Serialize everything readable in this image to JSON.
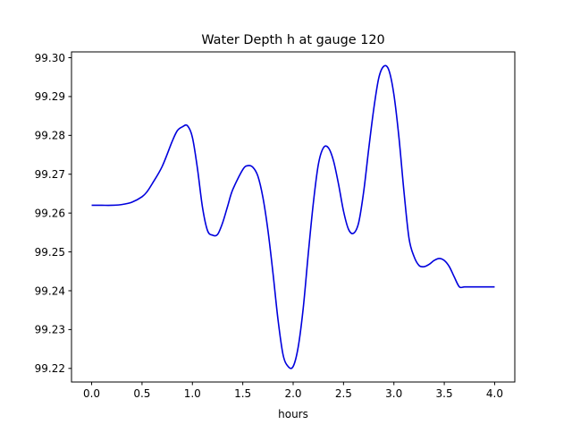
{
  "chart_data": {
    "type": "line",
    "title": "Water Depth h at gauge 120",
    "xlabel": "hours",
    "ylabel": "",
    "xlim": [
      -0.2,
      4.2
    ],
    "ylim": [
      99.2165,
      99.3015
    ],
    "xticks": [
      0.0,
      0.5,
      1.0,
      1.5,
      2.0,
      2.5,
      3.0,
      3.5,
      4.0
    ],
    "xtick_labels": [
      "0.0",
      "0.5",
      "1.0",
      "1.5",
      "2.0",
      "2.5",
      "3.0",
      "3.5",
      "4.0"
    ],
    "yticks": [
      99.22,
      99.23,
      99.24,
      99.25,
      99.26,
      99.27,
      99.28,
      99.29,
      99.3
    ],
    "ytick_labels": [
      "99.22",
      "99.23",
      "99.24",
      "99.25",
      "99.26",
      "99.27",
      "99.28",
      "99.29",
      "99.30"
    ],
    "grid": false,
    "series": [
      {
        "color": "#0000dd",
        "x": [
          0.0,
          0.1,
          0.2,
          0.3,
          0.4,
          0.5,
          0.55,
          0.6,
          0.7,
          0.8,
          0.85,
          0.9,
          0.95,
          1.0,
          1.05,
          1.1,
          1.15,
          1.2,
          1.25,
          1.3,
          1.35,
          1.4,
          1.5,
          1.55,
          1.6,
          1.65,
          1.7,
          1.75,
          1.8,
          1.85,
          1.9,
          1.95,
          2.0,
          2.05,
          2.1,
          2.15,
          2.2,
          2.25,
          2.3,
          2.35,
          2.4,
          2.45,
          2.5,
          2.55,
          2.6,
          2.65,
          2.7,
          2.75,
          2.8,
          2.85,
          2.9,
          2.95,
          3.0,
          3.05,
          3.1,
          3.15,
          3.2,
          3.25,
          3.3,
          3.35,
          3.4,
          3.45,
          3.5,
          3.55,
          3.6,
          3.65,
          3.7,
          3.75,
          3.8,
          3.85,
          3.9,
          3.95,
          4.0
        ],
        "y": [
          99.262,
          99.262,
          99.262,
          99.2622,
          99.2628,
          99.2642,
          99.2655,
          99.2675,
          99.272,
          99.2785,
          99.2812,
          99.2822,
          99.2825,
          99.2795,
          99.2715,
          99.2615,
          99.2555,
          99.2543,
          99.2545,
          99.2575,
          99.2618,
          99.266,
          99.2712,
          99.2722,
          99.2718,
          99.2695,
          99.264,
          99.2555,
          99.2445,
          99.2325,
          99.2235,
          99.2205,
          99.2205,
          99.2255,
          99.2355,
          99.2495,
          99.2625,
          99.2725,
          99.2768,
          99.2768,
          99.2735,
          99.2675,
          99.2605,
          99.2558,
          99.2548,
          99.2575,
          99.2655,
          99.2765,
          99.2868,
          99.2948,
          99.2978,
          99.2968,
          99.2905,
          99.2795,
          99.2655,
          99.2535,
          99.2488,
          99.2465,
          99.2462,
          99.2468,
          99.2478,
          99.2483,
          99.2478,
          99.2462,
          99.2435,
          99.241,
          99.241,
          99.241,
          99.241,
          99.241,
          99.241,
          99.241,
          99.241
        ]
      }
    ]
  }
}
